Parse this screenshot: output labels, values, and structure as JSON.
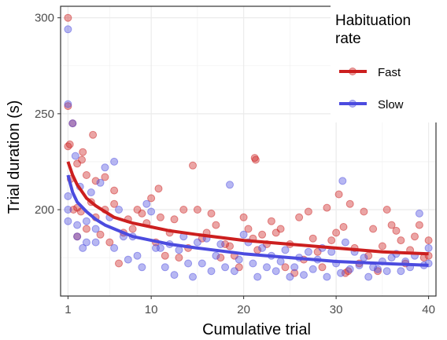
{
  "chart_data": {
    "type": "scatter",
    "xlabel": "Cumulative trial",
    "ylabel": "Trial duration (s)",
    "xlim": [
      0.2,
      40.8
    ],
    "ylim": [
      155,
      306
    ],
    "x_ticks": [
      1,
      10,
      20,
      30,
      40
    ],
    "y_ticks": [
      200,
      250,
      300
    ],
    "grid": true,
    "legend": {
      "title": "Habituation rate",
      "title_lines": [
        "Habituation",
        "rate"
      ],
      "placement": "top-right",
      "entries": [
        "Fast",
        "Slow"
      ]
    },
    "series": [
      {
        "name": "Fast",
        "color": "#cc1f1f",
        "points": [
          [
            1,
            300
          ],
          [
            1,
            254
          ],
          [
            1,
            233
          ],
          [
            1.2,
            234
          ],
          [
            1.3,
            216
          ],
          [
            1.5,
            245
          ],
          [
            1.6,
            200
          ],
          [
            2,
            224
          ],
          [
            2,
            201
          ],
          [
            2,
            186
          ],
          [
            2.4,
            199
          ],
          [
            2.5,
            226
          ],
          [
            2.6,
            230
          ],
          [
            3,
            218
          ],
          [
            3,
            190
          ],
          [
            3.5,
            204
          ],
          [
            3.7,
            239
          ],
          [
            4,
            196
          ],
          [
            4,
            215
          ],
          [
            4.5,
            187
          ],
          [
            5,
            217
          ],
          [
            5,
            200
          ],
          [
            5.5,
            183
          ],
          [
            6,
            203
          ],
          [
            6,
            210
          ],
          [
            6.5,
            172
          ],
          [
            7,
            188
          ],
          [
            7.5,
            195
          ],
          [
            8,
            190
          ],
          [
            8.5,
            200
          ],
          [
            9,
            198
          ],
          [
            9.5,
            193
          ],
          [
            10,
            206
          ],
          [
            10.5,
            183
          ],
          [
            10.8,
            211
          ],
          [
            11,
            196
          ],
          [
            11.5,
            176
          ],
          [
            12,
            188
          ],
          [
            12.5,
            195
          ],
          [
            13,
            175
          ],
          [
            13.5,
            200
          ],
          [
            14,
            180
          ],
          [
            14.5,
            223
          ],
          [
            15,
            200
          ],
          [
            15.5,
            185
          ],
          [
            16,
            188
          ],
          [
            16.5,
            198
          ],
          [
            17,
            192
          ],
          [
            17.5,
            175
          ],
          [
            18,
            182
          ],
          [
            18.5,
            181
          ],
          [
            19,
            176
          ],
          [
            19.5,
            170
          ],
          [
            20,
            196
          ],
          [
            20.5,
            190
          ],
          [
            21,
            185
          ],
          [
            21.2,
            227
          ],
          [
            21.3,
            226
          ],
          [
            21.5,
            179
          ],
          [
            22,
            187
          ],
          [
            22.5,
            182
          ],
          [
            23,
            194
          ],
          [
            23.5,
            188
          ],
          [
            24,
            190
          ],
          [
            24.5,
            170
          ],
          [
            25,
            182
          ],
          [
            25.5,
            167
          ],
          [
            26,
            196
          ],
          [
            26.5,
            174
          ],
          [
            27,
            199
          ],
          [
            27.5,
            185
          ],
          [
            28,
            178
          ],
          [
            28.5,
            170
          ],
          [
            29,
            201
          ],
          [
            29.5,
            184
          ],
          [
            30,
            188
          ],
          [
            30.3,
            208
          ],
          [
            30.8,
            191
          ],
          [
            31,
            167
          ],
          [
            31.3,
            168
          ],
          [
            31.5,
            203
          ],
          [
            32,
            180
          ],
          [
            32.5,
            172
          ],
          [
            33,
            199
          ],
          [
            33.5,
            176
          ],
          [
            34,
            190
          ],
          [
            34.5,
            168
          ],
          [
            35,
            181
          ],
          [
            35.5,
            200
          ],
          [
            36,
            192
          ],
          [
            36.5,
            189
          ],
          [
            37,
            184
          ],
          [
            37.5,
            172
          ],
          [
            38,
            179
          ],
          [
            38.5,
            186
          ],
          [
            39,
            192
          ],
          [
            39.5,
            175
          ],
          [
            40,
            184
          ],
          [
            40,
            176
          ]
        ]
      },
      {
        "name": "Slow",
        "color": "#4b4bdf",
        "points": [
          [
            1,
            294
          ],
          [
            1,
            255
          ],
          [
            1,
            207
          ],
          [
            1,
            200
          ],
          [
            1,
            194
          ],
          [
            1.5,
            245
          ],
          [
            1.8,
            228
          ],
          [
            2,
            192
          ],
          [
            2,
            186
          ],
          [
            2.3,
            212
          ],
          [
            2.6,
            180
          ],
          [
            3,
            194
          ],
          [
            3,
            183
          ],
          [
            3.5,
            209
          ],
          [
            4,
            190
          ],
          [
            4,
            183
          ],
          [
            4.5,
            214
          ],
          [
            5,
            222
          ],
          [
            5.5,
            196
          ],
          [
            6,
            225
          ],
          [
            6,
            180
          ],
          [
            6.5,
            200
          ],
          [
            7,
            186
          ],
          [
            7.5,
            174
          ],
          [
            8,
            186
          ],
          [
            8.5,
            176
          ],
          [
            9,
            170
          ],
          [
            9.5,
            203
          ],
          [
            10,
            199
          ],
          [
            10.5,
            180
          ],
          [
            11,
            180
          ],
          [
            11.5,
            170
          ],
          [
            12,
            182
          ],
          [
            12.5,
            166
          ],
          [
            13,
            179
          ],
          [
            13.5,
            186
          ],
          [
            14,
            172
          ],
          [
            14.5,
            165
          ],
          [
            15,
            183
          ],
          [
            15.5,
            172
          ],
          [
            16,
            185
          ],
          [
            16.5,
            168
          ],
          [
            17,
            176
          ],
          [
            17.5,
            182
          ],
          [
            18,
            170
          ],
          [
            18.5,
            213
          ],
          [
            19,
            168
          ],
          [
            19.5,
            174
          ],
          [
            20,
            187
          ],
          [
            20.5,
            183
          ],
          [
            21,
            172
          ],
          [
            21.5,
            165
          ],
          [
            22,
            180
          ],
          [
            22.5,
            170
          ],
          [
            23,
            176
          ],
          [
            23.5,
            168
          ],
          [
            24,
            173
          ],
          [
            24.5,
            179
          ],
          [
            25,
            165
          ],
          [
            25.5,
            170
          ],
          [
            26,
            175
          ],
          [
            26.5,
            166
          ],
          [
            27,
            178
          ],
          [
            27.5,
            169
          ],
          [
            28,
            174
          ],
          [
            28.5,
            180
          ],
          [
            29,
            165
          ],
          [
            29.5,
            178
          ],
          [
            30,
            172
          ],
          [
            30.5,
            167
          ],
          [
            30.7,
            215
          ],
          [
            31,
            183
          ],
          [
            31.5,
            169
          ],
          [
            32,
            178
          ],
          [
            32.5,
            171
          ],
          [
            33,
            175
          ],
          [
            33.5,
            165
          ],
          [
            34,
            170
          ],
          [
            34.5,
            169
          ],
          [
            35,
            173
          ],
          [
            35.5,
            168
          ],
          [
            36,
            175
          ],
          [
            36.5,
            177
          ],
          [
            37,
            168
          ],
          [
            37.5,
            173
          ],
          [
            38,
            170
          ],
          [
            38.5,
            176
          ],
          [
            39,
            198
          ],
          [
            39.5,
            171
          ],
          [
            40,
            180
          ],
          [
            40,
            172
          ]
        ]
      }
    ],
    "trend_lines": [
      {
        "series": "Fast",
        "points": [
          [
            1,
            225
          ],
          [
            1.5,
            218
          ],
          [
            2,
            213
          ],
          [
            3,
            206
          ],
          [
            4,
            202
          ],
          [
            5,
            199
          ],
          [
            6,
            196
          ],
          [
            8,
            193
          ],
          [
            10,
            191
          ],
          [
            12,
            189
          ],
          [
            15,
            187
          ],
          [
            20,
            184
          ],
          [
            25,
            182
          ],
          [
            30,
            180
          ],
          [
            35,
            178
          ],
          [
            40,
            177
          ]
        ]
      },
      {
        "series": "Slow",
        "points": [
          [
            1,
            218
          ],
          [
            1.5,
            209
          ],
          [
            2,
            204
          ],
          [
            3,
            199
          ],
          [
            4,
            195
          ],
          [
            5,
            192
          ],
          [
            6,
            190
          ],
          [
            8,
            186
          ],
          [
            10,
            184
          ],
          [
            12,
            182
          ],
          [
            15,
            180
          ],
          [
            20,
            177
          ],
          [
            25,
            175
          ],
          [
            30,
            173
          ],
          [
            35,
            172
          ],
          [
            40,
            171
          ]
        ]
      }
    ]
  }
}
